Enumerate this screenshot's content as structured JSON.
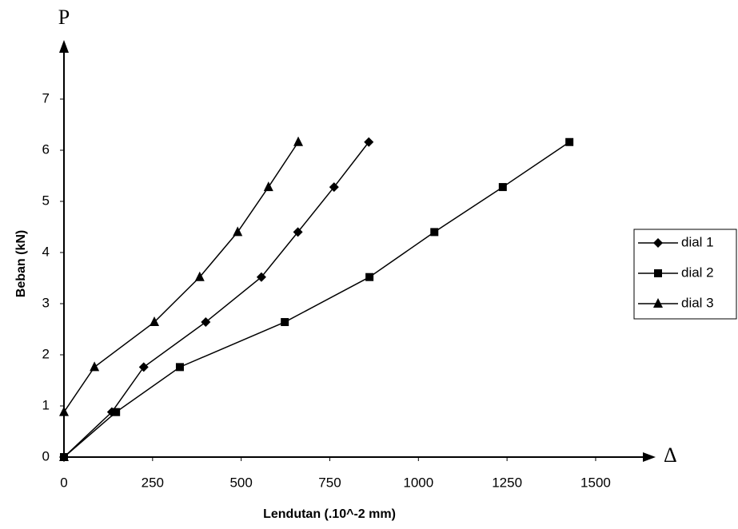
{
  "chart_data": {
    "type": "line",
    "y_axis_symbol": "P",
    "x_axis_symbol": "Δ",
    "ylabel": "Beban (kN)",
    "xlabel": "Lendutan (.10^-2 mm)",
    "xlim": [
      0,
      1658
    ],
    "ylim": [
      0,
      8
    ],
    "xticks": [
      0,
      250,
      500,
      750,
      1000,
      1250,
      1500
    ],
    "yticks": [
      0,
      1,
      2,
      3,
      4,
      5,
      6,
      7
    ],
    "legend": "right",
    "series": [
      {
        "name": "dial 1",
        "color": "#000000",
        "marker": "diamond",
        "x": [
          0,
          135,
          225,
          400,
          557,
          660,
          762,
          860
        ],
        "values": [
          0,
          0.88,
          1.76,
          2.64,
          3.52,
          4.4,
          5.28,
          6.16
        ]
      },
      {
        "name": "dial 2",
        "color": "#000000",
        "marker": "square",
        "x": [
          0,
          147,
          327,
          623,
          862,
          1045,
          1238,
          1426
        ],
        "values": [
          0,
          0.88,
          1.76,
          2.64,
          3.52,
          4.4,
          5.28,
          6.16
        ]
      },
      {
        "name": "dial 3",
        "color": "#000000",
        "marker": "triangle",
        "x": [
          0,
          0,
          86,
          255,
          383,
          490,
          577,
          661
        ],
        "values": [
          0,
          0.88,
          1.76,
          2.64,
          3.52,
          4.4,
          5.28,
          6.16
        ]
      }
    ]
  }
}
